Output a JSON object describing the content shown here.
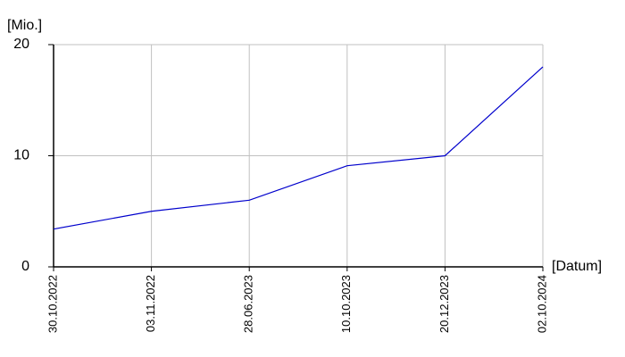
{
  "chart_data": {
    "type": "line",
    "y_label": "[Mio.]",
    "x_label": "[Datum]",
    "categories": [
      "30.10.2022",
      "03.11.2022",
      "28.06.2023",
      "10.10.2023",
      "20.12.2023",
      "02.10.2024"
    ],
    "values": [
      3.4,
      5,
      6,
      9.1,
      10,
      18
    ],
    "color": "#0000cc",
    "ylim": [
      0,
      20
    ],
    "yticks": [
      0,
      10,
      20
    ],
    "grid": true
  }
}
